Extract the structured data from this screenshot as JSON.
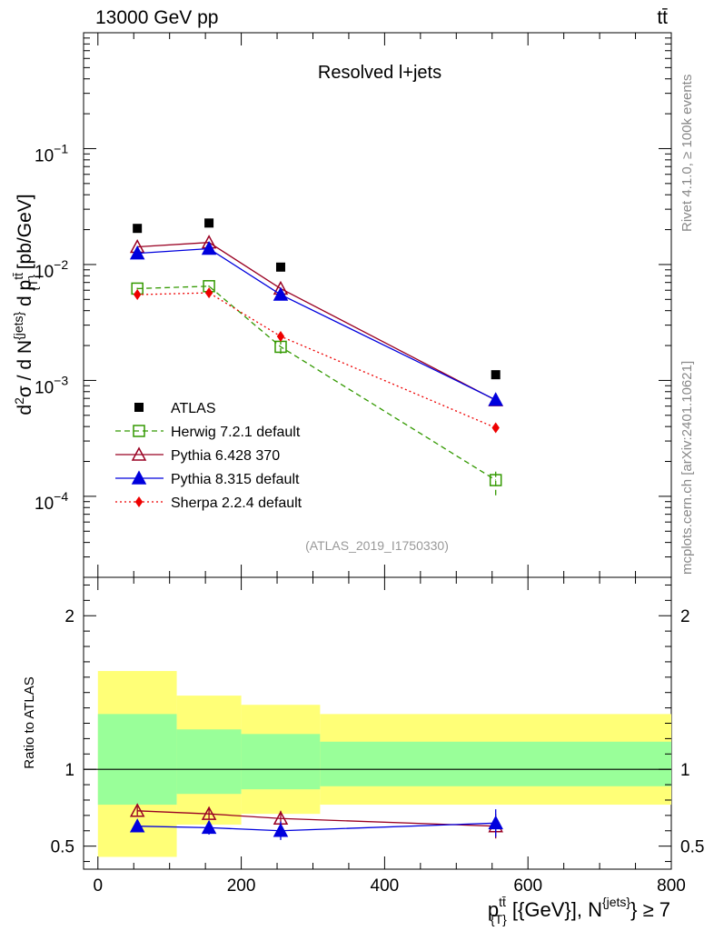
{
  "header": {
    "energy": "13000 GeV pp",
    "process": "tt̄"
  },
  "side_labels": {
    "rivet": "Rivet 4.1.0, ≥ 100k events",
    "mcplots": "mcplots.cern.ch [arXiv:2401.10621]"
  },
  "chart_data": {
    "type": "scatter",
    "title": "Resolved l+jets",
    "analysis_id": "(ATLAS_2019_I1750330)",
    "ylabel_main": "d²σ / d N^{jets} d p_{T}^{tt̄} [pb/GeV]",
    "ylabel_ratio": "Ratio to ATLAS",
    "xlabel": "p_{T}^{tt̄} [{GeV}], N^{jets} ≥ 7",
    "xlim": [
      -20,
      800
    ],
    "ylim_main": [
      2e-05,
      1
    ],
    "ylim_ratio": [
      0.35,
      2.25
    ],
    "x_ticks": [
      {
        "v": 0,
        "label": "0"
      },
      {
        "v": 200,
        "label": "200"
      },
      {
        "v": 400,
        "label": "400"
      },
      {
        "v": 600,
        "label": "600"
      },
      {
        "v": 800,
        "label": "800"
      }
    ],
    "y_ticks_main": [
      {
        "exp": -4,
        "label": "10",
        "sup": "−4"
      },
      {
        "exp": -3,
        "label": "10",
        "sup": "−3"
      },
      {
        "exp": -2,
        "label": "10",
        "sup": "−2"
      },
      {
        "exp": -1,
        "label": "10",
        "sup": "−1"
      }
    ],
    "y_ticks_ratio": [
      {
        "v": 0.5,
        "label": "0.5"
      },
      {
        "v": 1,
        "label": "1"
      },
      {
        "v": 2,
        "label": "2"
      }
    ],
    "bins": [
      [
        0,
        110
      ],
      [
        110,
        200
      ],
      [
        200,
        310
      ],
      [
        310,
        800
      ]
    ],
    "x": [
      55,
      155,
      255,
      555
    ],
    "band_outer": [
      [
        0.43,
        1.64
      ],
      [
        0.64,
        1.48
      ],
      [
        0.71,
        1.42
      ],
      [
        0.77,
        1.36
      ]
    ],
    "band_inner": [
      [
        0.77,
        1.36
      ],
      [
        0.84,
        1.26
      ],
      [
        0.87,
        1.23
      ],
      [
        0.89,
        1.18
      ]
    ],
    "series": [
      {
        "name": "ATLAS",
        "color": "#000000",
        "marker": "square",
        "line": "none",
        "values": [
          0.0205,
          0.0228,
          0.0095,
          0.00112
        ],
        "ratio": [
          1,
          1,
          1,
          1
        ],
        "ratio_err": [
          0,
          0,
          0,
          0
        ]
      },
      {
        "name": "Herwig 7.2.1 default",
        "color": "#339900",
        "marker": "open-square",
        "line": "dashed",
        "values": [
          0.0062,
          0.0065,
          0.00195,
          0.000138
        ],
        "err_lo": [
          0.0061,
          0.0064,
          0.0017,
          0.000102
        ],
        "err_hi": [
          0.0063,
          0.0066,
          0.0022,
          0.000172
        ],
        "ratio": null
      },
      {
        "name": "Pythia 6.428 370",
        "color": "#990022",
        "marker": "open-triangle",
        "line": "solid",
        "values": [
          0.0142,
          0.0155,
          0.0062,
          0.000675
        ],
        "ratio": [
          0.73,
          0.71,
          0.68,
          0.63
        ],
        "ratio_err": [
          0.03,
          0.035,
          0.05,
          0.08
        ]
      },
      {
        "name": "Pythia 8.315 default",
        "color": "#0000dd",
        "marker": "triangle",
        "line": "solid",
        "values": [
          0.0125,
          0.0137,
          0.0055,
          0.00068
        ],
        "ratio": [
          0.63,
          0.62,
          0.6,
          0.65
        ],
        "ratio_err": [
          0.04,
          0.045,
          0.06,
          0.09
        ]
      },
      {
        "name": "Sherpa 2.2.4 default",
        "color": "#ee0000",
        "marker": "diamond",
        "line": "dotted",
        "values": [
          0.0055,
          0.0057,
          0.0024,
          0.00039
        ],
        "ratio": null
      }
    ]
  }
}
